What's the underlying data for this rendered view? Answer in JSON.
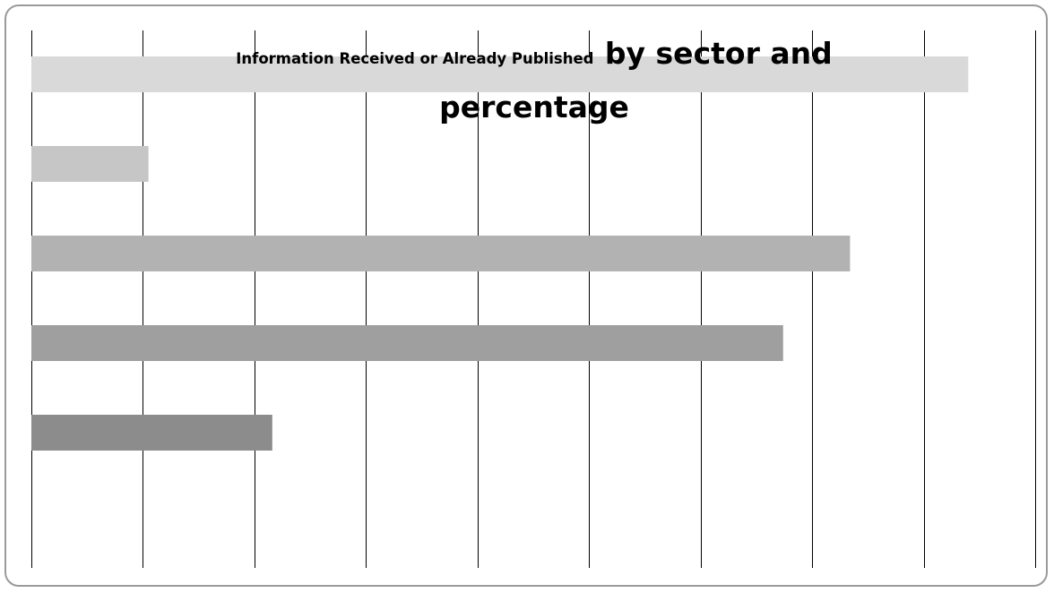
{
  "chart_data": {
    "type": "bar",
    "orientation": "horizontal",
    "title_part1": "Information Received or Already Published",
    "title_part2": "by sector and",
    "title_part3": "percentage",
    "categories": [
      "",
      "",
      "",
      "",
      ""
    ],
    "values": [
      84,
      10.5,
      73.4,
      67.4,
      21.6
    ],
    "xlim": [
      0,
      90
    ],
    "x_step": 10,
    "grid": true,
    "legend": "none",
    "bar_colors": [
      "#d9d9d9",
      "#c6c6c6",
      "#b2b2b2",
      "#9f9f9f",
      "#8c8c8c"
    ],
    "gridline_color": "#000000",
    "frame_color": "#9a9a9a"
  }
}
